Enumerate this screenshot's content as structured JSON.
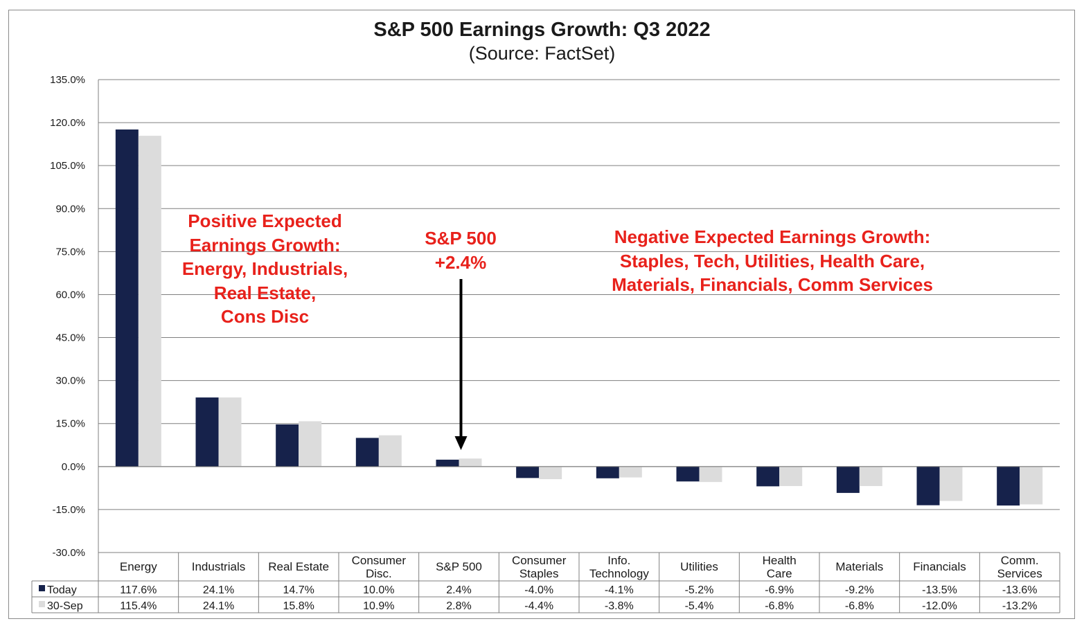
{
  "title": "S&P 500 Earnings Growth: Q3 2022",
  "subtitle": "(Source: FactSet)",
  "annotations": {
    "positive": [
      "Positive Expected",
      "Earnings Growth:",
      "Energy, Industrials,",
      "Real Estate,",
      "Cons Disc"
    ],
    "sp500": [
      "S&P 500",
      "+2.4%"
    ],
    "negative": [
      "Negative Expected Earnings Growth:",
      "Staples, Tech, Utilities, Health Care,",
      "Materials, Financials, Comm Services"
    ]
  },
  "colors": {
    "today": "#16224b",
    "sep30": "#dcdcdc",
    "annotation": "#e8211b",
    "grid": "#7f7f7f"
  },
  "chart_data": {
    "type": "bar",
    "categories": [
      [
        "Energy"
      ],
      [
        "Industrials"
      ],
      [
        "Real Estate"
      ],
      [
        "Consumer",
        "Disc."
      ],
      [
        "S&P 500"
      ],
      [
        "Consumer",
        "Staples"
      ],
      [
        "Info.",
        "Technology"
      ],
      [
        "Utilities"
      ],
      [
        "Health",
        "Care"
      ],
      [
        "Materials"
      ],
      [
        "Financials"
      ],
      [
        "Comm.",
        "Services"
      ]
    ],
    "series": [
      {
        "name": "Today",
        "values": [
          117.6,
          24.1,
          14.7,
          10.0,
          2.4,
          -4.0,
          -4.1,
          -5.2,
          -6.9,
          -9.2,
          -13.5,
          -13.6
        ],
        "labels": [
          "117.6%",
          "24.1%",
          "14.7%",
          "10.0%",
          "2.4%",
          "-4.0%",
          "-4.1%",
          "-5.2%",
          "-6.9%",
          "-9.2%",
          "-13.5%",
          "-13.6%"
        ]
      },
      {
        "name": "30-Sep",
        "values": [
          115.4,
          24.1,
          15.8,
          10.9,
          2.8,
          -4.4,
          -3.8,
          -5.4,
          -6.8,
          -6.8,
          -12.0,
          -13.2
        ],
        "labels": [
          "115.4%",
          "24.1%",
          "15.8%",
          "10.9%",
          "2.8%",
          "-4.4%",
          "-3.8%",
          "-5.4%",
          "-6.8%",
          "-6.8%",
          "-12.0%",
          "-13.2%"
        ]
      }
    ],
    "ylim": [
      -30,
      135
    ],
    "yticks": [
      135,
      120,
      105,
      90,
      75,
      60,
      45,
      30,
      15,
      0,
      -15,
      -30
    ],
    "ytick_labels": [
      "135.0%",
      "120.0%",
      "105.0%",
      "90.0%",
      "75.0%",
      "60.0%",
      "45.0%",
      "30.0%",
      "15.0%",
      "0.0%",
      "-15.0%",
      "-30.0%"
    ],
    "grid": true,
    "legend": "data-table-below"
  }
}
